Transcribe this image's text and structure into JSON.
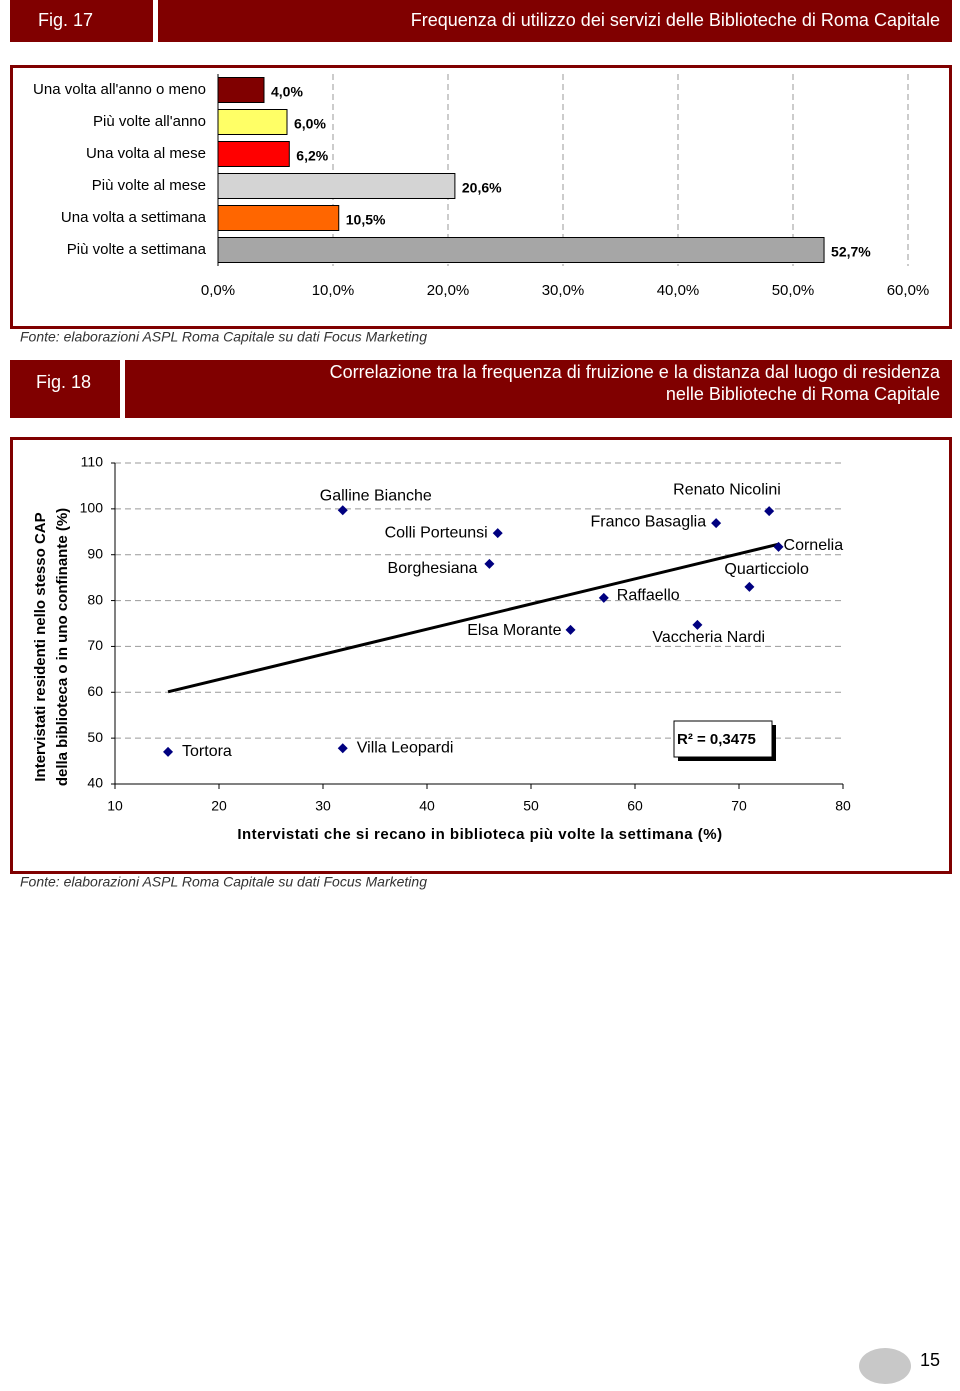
{
  "page_number": "15",
  "chart_data": [
    {
      "type": "bar",
      "orientation": "horizontal",
      "figure": "Fig. 17",
      "title": "Frequenza di utilizzo dei servizi delle Biblioteche di Roma Capitale",
      "source": "Fonte: elaborazioni ASPL Roma Capitale su dati Focus Marketing",
      "categories": [
        "Una volta all'anno o meno",
        "Più volte all'anno",
        "Una volta al mese",
        "Più volte al mese",
        "Una volta a settimana",
        "Più volte a settimana"
      ],
      "values": [
        4.0,
        6.0,
        6.2,
        20.6,
        10.5,
        52.7
      ],
      "value_labels": [
        "4,0%",
        "6,0%",
        "6,2%",
        "20,6%",
        "10,5%",
        "52,7%"
      ],
      "colors": [
        "#800000",
        "#ffff66",
        "#ff0000",
        "#d4d4d4",
        "#ff6600",
        "#a6a6a6"
      ],
      "xlim": [
        0,
        60
      ],
      "xticks": [
        {
          "value": 0,
          "label": "0,0%"
        },
        {
          "value": 10,
          "label": "10,0%"
        },
        {
          "value": 20,
          "label": "20,0%"
        },
        {
          "value": 30,
          "label": "30,0%"
        },
        {
          "value": 40,
          "label": "40,0%"
        },
        {
          "value": 50,
          "label": "50,0%"
        },
        {
          "value": 60,
          "label": "60,0%"
        }
      ],
      "grid": true
    },
    {
      "type": "scatter",
      "figure": "Fig. 18",
      "title": [
        "Correlazione tra la frequenza di fruizione e la distanza dal luogo di residenza",
        "nelle Biblioteche di Roma Capitale"
      ],
      "source": "Fonte: elaborazioni ASPL Roma Capitale su dati Focus Marketing",
      "xlabel": "Intervistati che si recano in biblioteca più volte la settimana (%)",
      "ylabel": [
        "Intervistati residenti nello stesso CAP",
        "della biblioteca o in uno confinante (%)"
      ],
      "points": [
        "Tortora",
        "Galline Bianche",
        "Colli Porteunsi",
        "Borghesiana",
        "Villa Leopardi",
        "Elsa Morante",
        "Raffaello",
        "Vaccheria Nardi",
        "Franco Basaglia",
        "Renato Nicolini",
        "Cornelia",
        "Quarticciolo"
      ],
      "x": [
        15.1,
        31.9,
        46.8,
        46.0,
        31.9,
        53.8,
        57.0,
        66.0,
        67.8,
        72.9,
        73.8,
        71.0
      ],
      "y": [
        47.0,
        99.7,
        94.7,
        88.0,
        47.8,
        73.6,
        80.6,
        74.7,
        96.9,
        99.5,
        91.7,
        83.0
      ],
      "color": "#000080",
      "trendline": {
        "x": [
          15.1,
          73.8
        ],
        "y": [
          60.1,
          92.3
        ]
      },
      "annotation": "R² = 0,3475",
      "xlim": [
        10,
        80
      ],
      "xticks": [
        10,
        20,
        30,
        40,
        50,
        60,
        70,
        80
      ],
      "ylim": [
        40,
        110
      ],
      "yticks": [
        40,
        50,
        60,
        70,
        80,
        90,
        100,
        110
      ],
      "grid": true
    }
  ]
}
